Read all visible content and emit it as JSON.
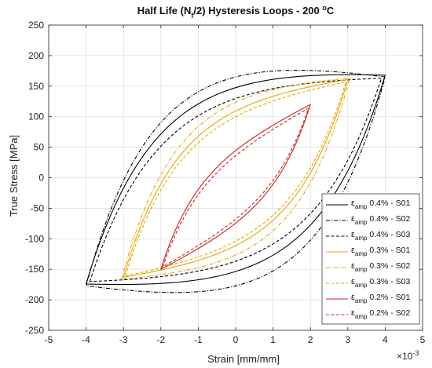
{
  "chart_data": {
    "type": "line",
    "title": {
      "prefix": "Half Life (N",
      "sub": "f",
      "middle": "/2) Hysteresis Loops - 200 ",
      "sup": "o",
      "suffix": "C"
    },
    "xlabel": "Strain [mm/mm]",
    "ylabel": "True Stress [MPa]",
    "x_multiplier": {
      "base": "×10",
      "exp": "-3"
    },
    "xlim": [
      -5,
      5
    ],
    "ylim": [
      -250,
      250
    ],
    "x_ticks": [
      -5,
      -4,
      -3,
      -2,
      -1,
      0,
      1,
      2,
      3,
      4,
      5
    ],
    "y_ticks": [
      -250,
      -200,
      -150,
      -100,
      -50,
      0,
      50,
      100,
      150,
      200,
      250
    ],
    "grid": true,
    "legend_position": "lower-right",
    "series": [
      {
        "legend_symbol": "ε",
        "legend_sub": "amp",
        "legend_rest": " 0.4% - S01",
        "color": "#000000",
        "dash": "solid",
        "amp": 4.0,
        "max": 168,
        "min": -174,
        "width": 1.1
      },
      {
        "legend_symbol": "ε",
        "legend_sub": "amp",
        "legend_rest": " 0.4% - S02",
        "color": "#000000",
        "dash": "dashdot",
        "amp": 4.0,
        "max": 165,
        "min": -177,
        "width": 1.25
      },
      {
        "legend_symbol": "ε",
        "legend_sub": "amp",
        "legend_rest": " 0.4% - S03",
        "color": "#000000",
        "dash": "dashed",
        "amp": 3.9,
        "max": 163,
        "min": -170,
        "width": 1.0
      },
      {
        "legend_symbol": "ε",
        "legend_sub": "amp",
        "legend_rest": " 0.3% - S01",
        "color": "#e6a700",
        "dash": "solid",
        "amp": 3.0,
        "max": 161,
        "min": -163,
        "width": 0.85
      },
      {
        "legend_symbol": "ε",
        "legend_sub": "amp",
        "legend_rest": " 0.3% - S02",
        "color": "#e6a700",
        "dash": "dashdot",
        "amp": 3.05,
        "max": 163,
        "min": -166,
        "width": 0.95
      },
      {
        "legend_symbol": "ε",
        "legend_sub": "amp",
        "legend_rest": " 0.3% - S03",
        "color": "#e6a700",
        "dash": "dashed",
        "amp": 2.95,
        "max": 157,
        "min": -161,
        "width": 0.8
      },
      {
        "legend_symbol": "ε",
        "legend_sub": "amp",
        "legend_rest": " 0.2% - S01",
        "color": "#d02020",
        "dash": "solid",
        "amp": 2.0,
        "max": 120,
        "min": -150,
        "width": 0.55
      },
      {
        "legend_symbol": "ε",
        "legend_sub": "amp",
        "legend_rest": " 0.2% - S02",
        "color": "#d02020",
        "dash": "dashed",
        "amp": 1.95,
        "max": 114,
        "min": -146,
        "width": 0.5
      }
    ]
  }
}
